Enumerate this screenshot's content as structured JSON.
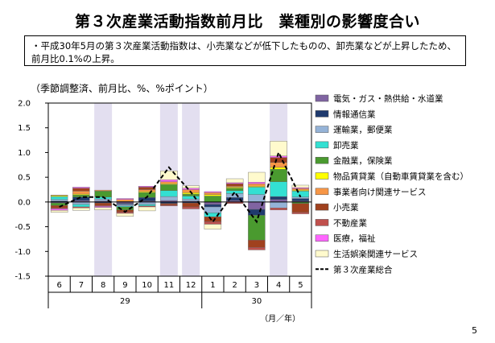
{
  "page": {
    "title": "第３次産業活動指数前月比　業種別の影響度合い",
    "summary": "・平成30年5月の第３次産業活動指数は、小売業などが低下したものの、卸売業などが上昇したため、前月比0.1%の上昇。",
    "unit_note": "（季節調整済、前月比、%、%ポイント）",
    "page_number": "5"
  },
  "chart_data": {
    "type": "bar",
    "stacked": true,
    "categories": [
      "6",
      "7",
      "8",
      "9",
      "10",
      "11",
      "12",
      "1",
      "2",
      "3",
      "4",
      "5"
    ],
    "year_labels": [
      {
        "label": "29",
        "from": 0,
        "to": 6
      },
      {
        "label": "30",
        "from": 7,
        "to": 11
      }
    ],
    "xlabel": "（月／年）",
    "ylabel": "",
    "ylim": [
      -1.5,
      2.0
    ],
    "yticks": [
      2.0,
      1.5,
      1.0,
      0.5,
      0.0,
      -0.5,
      -1.0,
      -1.5
    ],
    "shaded_categories": [
      2,
      5,
      6,
      10
    ],
    "legend_position": "right",
    "series": [
      {
        "name": "電気・ガス・熱供給・水道業",
        "color": "#8064a2",
        "values": [
          -0.02,
          0.03,
          0.02,
          -0.03,
          0.02,
          0.03,
          0.02,
          -0.05,
          0.03,
          -0.15,
          0.05,
          0.02
        ]
      },
      {
        "name": "情報通信業",
        "color": "#1f3a6e",
        "values": [
          0.02,
          0.07,
          -0.02,
          -0.02,
          0.07,
          -0.03,
          -0.02,
          -0.05,
          0.06,
          -0.12,
          0.06,
          0.05
        ]
      },
      {
        "name": "運輸業，郵便業",
        "color": "#95b3d7",
        "values": [
          0.03,
          -0.05,
          0.04,
          -0.03,
          -0.05,
          0.08,
          0.04,
          -0.12,
          0.08,
          0.15,
          -0.12,
          0.03
        ]
      },
      {
        "name": "卸売業",
        "color": "#33e0d2",
        "values": [
          0.06,
          -0.05,
          0.04,
          -0.02,
          -0.03,
          0.12,
          0.06,
          -0.08,
          0.06,
          0.15,
          0.3,
          0.12
        ]
      },
      {
        "name": "金融業，保険業",
        "color": "#4a9a2f",
        "values": [
          -0.05,
          0.04,
          0.12,
          -0.06,
          0.1,
          0.12,
          0.04,
          0.12,
          0.05,
          -0.5,
          0.25,
          -0.03
        ]
      },
      {
        "name": "物品賃貸業（自動車賃貸業を含む）",
        "color": "#ffff00",
        "values": [
          0.02,
          0.02,
          0.0,
          0.01,
          0.02,
          0.02,
          0.03,
          0.03,
          0.02,
          0.02,
          0.04,
          0.02
        ]
      },
      {
        "name": "事業者向け関連サービス",
        "color": "#f79646",
        "values": [
          0.01,
          0.06,
          0.02,
          0.04,
          0.04,
          0.04,
          0.06,
          0.04,
          0.02,
          0.05,
          0.1,
          0.03
        ]
      },
      {
        "name": "小売業",
        "color": "#a0411e",
        "values": [
          -0.05,
          0.06,
          -0.05,
          -0.04,
          0.05,
          -0.03,
          -0.08,
          -0.1,
          0.05,
          -0.15,
          0.1,
          -0.18
        ]
      },
      {
        "name": "不動産業",
        "color": "#c0504d",
        "values": [
          -0.02,
          -0.02,
          -0.02,
          -0.03,
          -0.02,
          -0.02,
          -0.04,
          -0.05,
          -0.03,
          -0.05,
          -0.04,
          -0.03
        ]
      },
      {
        "name": "医療，福祉",
        "color": "#ff66ff",
        "values": [
          -0.03,
          0.02,
          -0.02,
          0.02,
          0.02,
          0.04,
          0.03,
          0.02,
          0.02,
          0.03,
          0.03,
          0.02
        ]
      },
      {
        "name": "生活娯楽関連サービス",
        "color": "#fffacd",
        "values": [
          -0.04,
          -0.05,
          -0.05,
          -0.06,
          -0.08,
          0.18,
          0.05,
          -0.1,
          0.08,
          0.2,
          0.3,
          0.05
        ]
      }
    ],
    "line": {
      "name": "第３次産業総合",
      "values": [
        -0.1,
        0.1,
        0.1,
        -0.2,
        0.1,
        0.7,
        0.2,
        -0.4,
        0.2,
        -0.4,
        1.0,
        0.1
      ]
    }
  }
}
